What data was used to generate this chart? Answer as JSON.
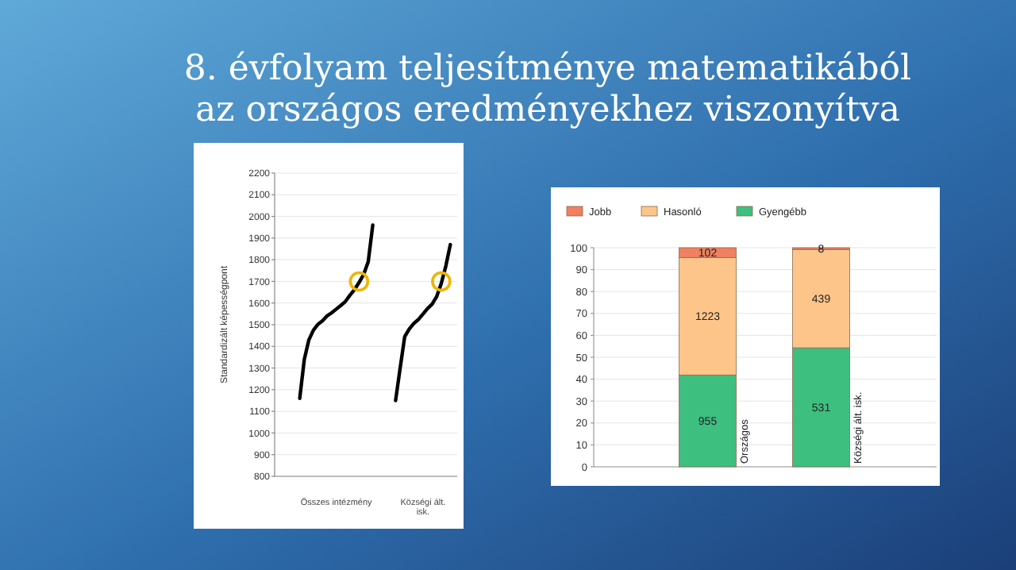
{
  "chart_data": [
    {
      "type": "line",
      "title": "8. évfolyam teljesítménye matematikából\naz országos eredményekhez viszonyítva",
      "ylabel": "Standardizált képességpont",
      "categories": [
        null,
        null,
        null,
        null,
        null,
        null,
        null,
        null,
        null,
        null,
        null,
        null,
        null,
        "Összes intézmény",
        null,
        null,
        null,
        null,
        null,
        null,
        null,
        null,
        null,
        null,
        null,
        null,
        null,
        null,
        null,
        null,
        null,
        null,
        "Községi ált. isk.",
        null,
        null,
        null,
        null,
        null,
        null,
        null
      ],
      "ylim": [
        800,
        2200
      ],
      "yticks": [
        800,
        900,
        1000,
        1100,
        1200,
        1300,
        1400,
        1500,
        1600,
        1700,
        1800,
        1900,
        2000,
        2100,
        2200
      ],
      "grid": "y",
      "marker": "none",
      "series": [
        {
          "color": "#000000",
          "values": [
            null,
            null,
            null,
            null,
            null,
            1160,
            1340,
            1430,
            1475,
            1502,
            1518,
            1541,
            1555,
            1572,
            1589,
            1607,
            1636,
            1662,
            1695,
            1732,
            1790,
            1960,
            null,
            null,
            null,
            null,
            null,
            null,
            null,
            null,
            null,
            null,
            null,
            null,
            null,
            null,
            null,
            null,
            null,
            null
          ]
        },
        {
          "color": "#000000",
          "values": [
            null,
            null,
            null,
            null,
            null,
            null,
            null,
            null,
            null,
            null,
            null,
            null,
            null,
            null,
            null,
            null,
            null,
            null,
            null,
            null,
            null,
            null,
            null,
            null,
            null,
            null,
            1150,
            1300,
            1445,
            1480,
            1506,
            1524,
            1549,
            1575,
            1595,
            1630,
            1690,
            1770,
            1870,
            null
          ]
        },
        {
          "type": "scatter",
          "marker": "circle",
          "color": "#f0b400",
          "values": [
            null,
            null,
            null,
            null,
            null,
            null,
            null,
            null,
            null,
            null,
            null,
            null,
            null,
            null,
            null,
            null,
            null,
            null,
            1700,
            null,
            null,
            null,
            null,
            null,
            null,
            null,
            null,
            null,
            null,
            null,
            null,
            null,
            null,
            null,
            null,
            null,
            1700,
            null,
            null,
            null
          ]
        }
      ]
    },
    {
      "type": "bar",
      "stacked": true,
      "categories": [
        "Országos",
        "Községi ált. isk."
      ],
      "ylim": [
        0,
        100
      ],
      "yticks": [
        0,
        10,
        20,
        30,
        40,
        50,
        60,
        70,
        80,
        90,
        100
      ],
      "grid": "y",
      "legend": "top left",
      "series": [
        {
          "name": "Gyengébb",
          "color": "#3dbf7f",
          "values": [
            41.9,
            54.3
          ]
        },
        {
          "name": "Hasonló",
          "color": "#fdc58a",
          "values": [
            53.6,
            44.9
          ]
        },
        {
          "name": "Jobb",
          "color": "#f08060",
          "values": [
            4.5,
            0.8
          ]
        }
      ],
      "annotations": [
        "955",
        "531",
        "1223",
        "439",
        "102",
        "8"
      ]
    }
  ]
}
